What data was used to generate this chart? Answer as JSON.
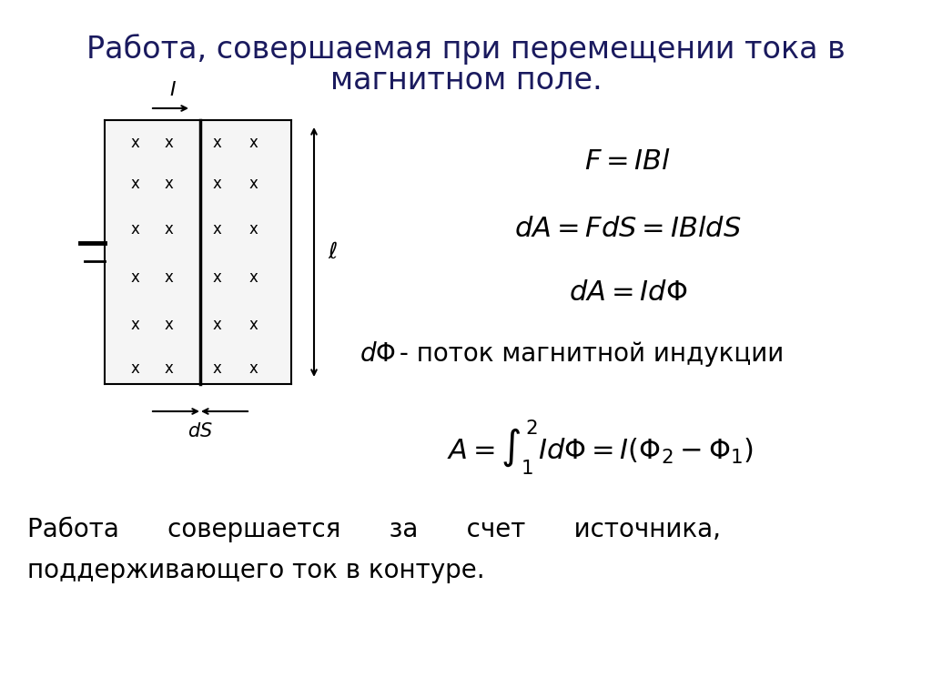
{
  "title_line1": "Работа, совершаемая при перемещении тока в",
  "title_line2": "магнитном поле.",
  "title_fontsize": 24,
  "title_color": "#1a1a5e",
  "bg_color": "#ffffff",
  "formula1": "$F = IBl$",
  "formula2": "$dA = FdS = IBldS$",
  "formula3": "$dA = Id\\Phi$",
  "formula4_italic": "$d\\Phi$",
  "formula4_rest": " - поток магнитной индукции",
  "formula5": "$A = \\int_{1}^{2} Id\\Phi = I(\\Phi_2 - \\Phi_1)$",
  "bottom_text1": "Работа      совершается      за      счет      источника,",
  "bottom_text2": "поддерживающего ток в контуре.",
  "formula_fontsize": 19,
  "text_fontsize": 20,
  "formula_color": "#000000",
  "text_color": "#000000"
}
